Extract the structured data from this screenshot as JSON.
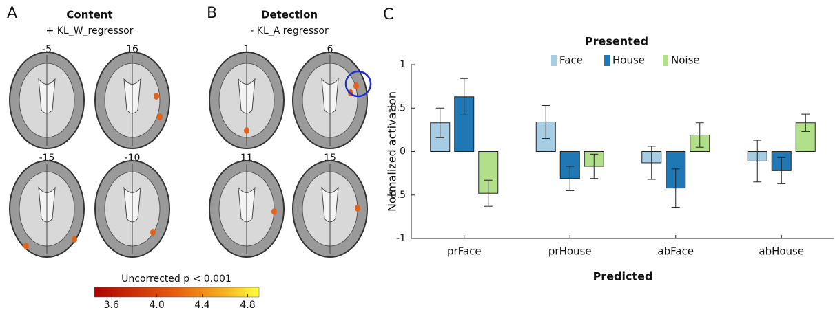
{
  "panels": {
    "A": {
      "letter": "A",
      "title": "Content",
      "subtitle": "+ KL_W_regressor",
      "slices": [
        -5,
        16,
        -15,
        -10
      ]
    },
    "B": {
      "letter": "B",
      "title": "Detection",
      "subtitle": "- KL_A regressor",
      "slices": [
        1,
        6,
        11,
        15
      ]
    },
    "C": {
      "letter": "C"
    }
  },
  "colorbar": {
    "label": "Uncorrected p < 0.001",
    "lim": [
      3.45,
      4.9
    ],
    "ticks": [
      3.6,
      {
        "value": 4,
        "label": "4.0"
      },
      4.4,
      {
        "value": 4.8,
        "label": "4.8"
      }
    ]
  },
  "chart_data": {
    "type": "bar",
    "legend_title": "Presented",
    "xlabel": "Predicted",
    "ylabel": "Normalized activation",
    "categories": [
      "prFace",
      "prHouse",
      "abFace",
      "abHouse"
    ],
    "series": [
      {
        "name": "Face",
        "color": "#a6cde3",
        "values": [
          0.33,
          0.34,
          -0.13,
          -0.11
        ],
        "errors": [
          0.17,
          0.19,
          0.19,
          0.24
        ]
      },
      {
        "name": "House",
        "color": "#1f78b4",
        "values": [
          0.63,
          -0.31,
          -0.42,
          -0.22
        ],
        "errors": [
          0.21,
          0.14,
          0.22,
          0.15
        ]
      },
      {
        "name": "Noise",
        "color": "#b2df8a",
        "values": [
          -0.48,
          -0.17,
          0.19,
          0.33
        ],
        "errors": [
          0.15,
          0.14,
          0.14,
          0.1
        ]
      }
    ],
    "ylim": [
      -1,
      1
    ],
    "yticks": [
      -1,
      -0.5,
      0,
      0.5,
      1
    ],
    "legend": "top"
  }
}
